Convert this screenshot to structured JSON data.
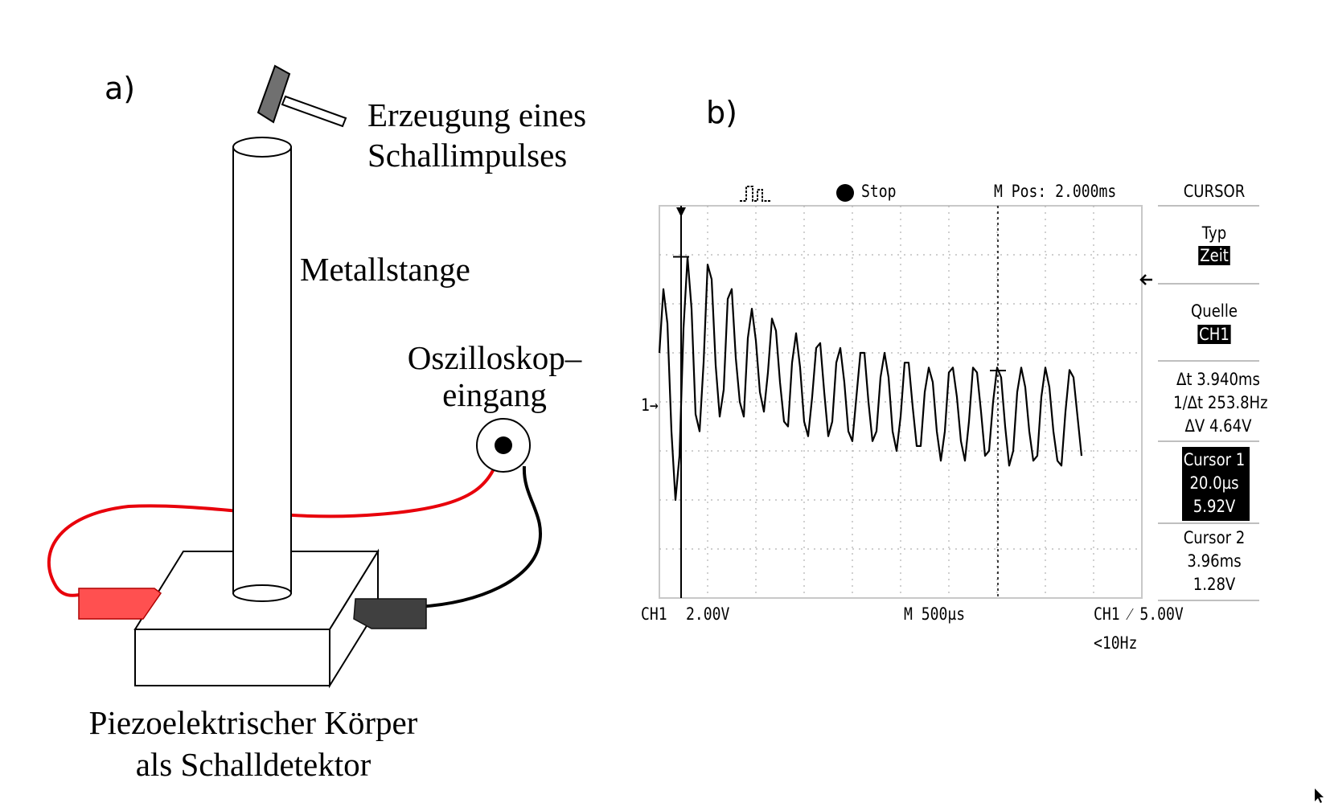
{
  "panel_a": {
    "letter": "a)",
    "labels": {
      "hammer_line1": "Erzeugung eines",
      "hammer_line2": "Schallimpulses",
      "rod": "Metallstange",
      "osc_line1": "Oszilloskop–",
      "osc_line2": "eingang",
      "piezo_line1": "Piezoelektrischer Körper",
      "piezo_line2": "als Schalldetektor"
    },
    "colors": {
      "red_cable": "#e8000b",
      "red_clip": "#ff5050",
      "black_clip": "#404040",
      "hammer_head": "#707070"
    }
  },
  "panel_b": {
    "letter": "b)",
    "top_bar": {
      "trigger_icon": "pulse-icon",
      "state": "Stop",
      "position": "M Pos: 2.000ms"
    },
    "menu": {
      "title": "CURSOR",
      "type_label": "Typ",
      "type_value": "Zeit",
      "source_label": "Quelle",
      "source_value": "CH1",
      "delta_t": "Δt 3.940ms",
      "inv_delta_t": "1/Δt 253.8Hz",
      "delta_v": "ΔV 4.64V",
      "cursor1_title": "Cursor 1",
      "cursor1_time": "20.0µs",
      "cursor1_volt": "5.92V",
      "cursor2_title": "Cursor 2",
      "cursor2_time": "3.96ms",
      "cursor2_volt": "1.28V"
    },
    "bottom_bar": {
      "ch1_label": "CH1",
      "ch1_scale": "2.00V",
      "timebase": "M 500µs",
      "trigger": "CH1 ⁄ 5.00V",
      "freq": "<10Hz"
    },
    "ground_marker": "1→"
  },
  "chart_data": {
    "type": "line",
    "title": "",
    "xlabel": "",
    "ylabel": "",
    "x_unit": "ms",
    "y_unit": "V",
    "xlim": [
      -0.25,
      5.75
    ],
    "ylim": [
      -8,
      8
    ],
    "grid": true,
    "series": [
      {
        "x": [
          -0.25,
          -0.2,
          -0.15,
          -0.1,
          -0.05,
          0,
          0.05,
          0.1,
          0.15,
          0.2,
          0.25,
          0.3,
          0.35,
          0.4,
          0.45,
          0.5,
          0.55,
          0.6,
          0.65,
          0.7,
          0.75,
          0.8,
          0.85,
          0.9,
          0.95,
          1.0,
          1.05,
          1.1,
          1.15,
          1.2,
          1.25,
          1.3,
          1.35,
          1.4,
          1.45,
          1.5,
          1.55,
          1.6,
          1.65,
          1.7,
          1.75,
          1.8,
          1.85,
          1.9,
          1.95,
          2.0,
          2.05,
          2.1,
          2.15,
          2.2,
          2.25,
          2.3,
          2.35,
          2.4,
          2.45,
          2.5,
          2.55,
          2.6,
          2.65,
          2.7,
          2.75,
          2.8,
          2.85,
          2.9,
          2.95,
          3.0,
          3.05,
          3.1,
          3.15,
          3.2,
          3.25,
          3.3,
          3.35,
          3.4,
          3.45,
          3.5,
          3.55,
          3.6,
          3.65,
          3.7,
          3.75,
          3.8,
          3.85,
          3.9,
          3.95,
          4.0,
          4.05,
          4.1,
          4.15,
          4.2,
          4.25,
          4.3,
          4.35,
          4.4,
          4.45,
          4.5,
          4.55,
          4.6,
          4.65,
          4.7,
          4.75,
          4.8,
          4.85,
          4.9,
          4.95,
          5.0
        ],
        "y": [
          2.0,
          4.6,
          3.2,
          -1.2,
          -4.0,
          -2.2,
          3.0,
          5.9,
          3.8,
          -0.5,
          -1.2,
          1.6,
          5.6,
          5.0,
          1.5,
          -0.6,
          0.5,
          4.2,
          4.6,
          1.8,
          0.0,
          -0.6,
          2.6,
          3.8,
          2.5,
          0.4,
          -0.4,
          1.2,
          3.4,
          2.9,
          0.8,
          -0.8,
          -1.0,
          1.6,
          2.8,
          1.4,
          -0.8,
          -1.4,
          0.2,
          2.2,
          2.4,
          0.4,
          -1.4,
          -0.8,
          1.6,
          2.2,
          0.8,
          -1.2,
          -1.6,
          0.2,
          2.0,
          2.0,
          0.0,
          -1.6,
          -1.2,
          1.0,
          2.0,
          1.0,
          -1.2,
          -2.0,
          -0.6,
          1.6,
          1.6,
          -0.2,
          -1.8,
          -1.8,
          0.4,
          1.4,
          0.8,
          -1.2,
          -2.4,
          -1.2,
          1.2,
          1.4,
          0.2,
          -1.6,
          -2.4,
          -0.8,
          1.4,
          1.2,
          -0.4,
          -2.2,
          -2.0,
          0.0,
          1.4,
          1.0,
          -1.0,
          -2.6,
          -2.0,
          0.4,
          1.4,
          0.6,
          -1.2,
          -2.4,
          -2.2,
          0.2,
          1.4,
          0.6,
          -1.2,
          -2.4,
          -2.6,
          -0.4,
          1.3,
          1.0,
          -0.6,
          -2.2
        ]
      }
    ],
    "cursors": [
      {
        "name": "Cursor 1",
        "x": 0.02,
        "y": 5.92
      },
      {
        "name": "Cursor 2",
        "x": 3.96,
        "y": 1.28
      }
    ]
  }
}
